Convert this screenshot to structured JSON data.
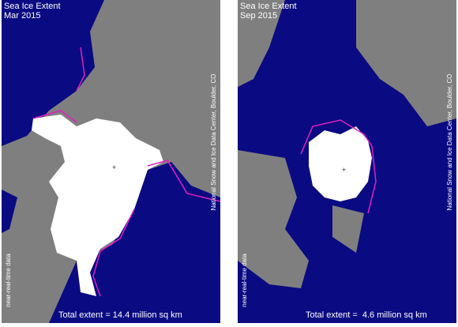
{
  "panels": [
    {
      "title": "Sea Ice Extent",
      "date": "Mar 2015",
      "credit": "National Snow and Ice Data Center, Boulder, CO",
      "note": "near-real-time data",
      "total": "Total extent = 14.4 million sq km"
    },
    {
      "title": "Sea Ice Extent",
      "date": "Sep 2015",
      "credit": "National Snow and Ice Data Center, Boulder, CO",
      "note": "near-real-time data",
      "total": "Total extent =  4.6 million sq km"
    }
  ]
}
